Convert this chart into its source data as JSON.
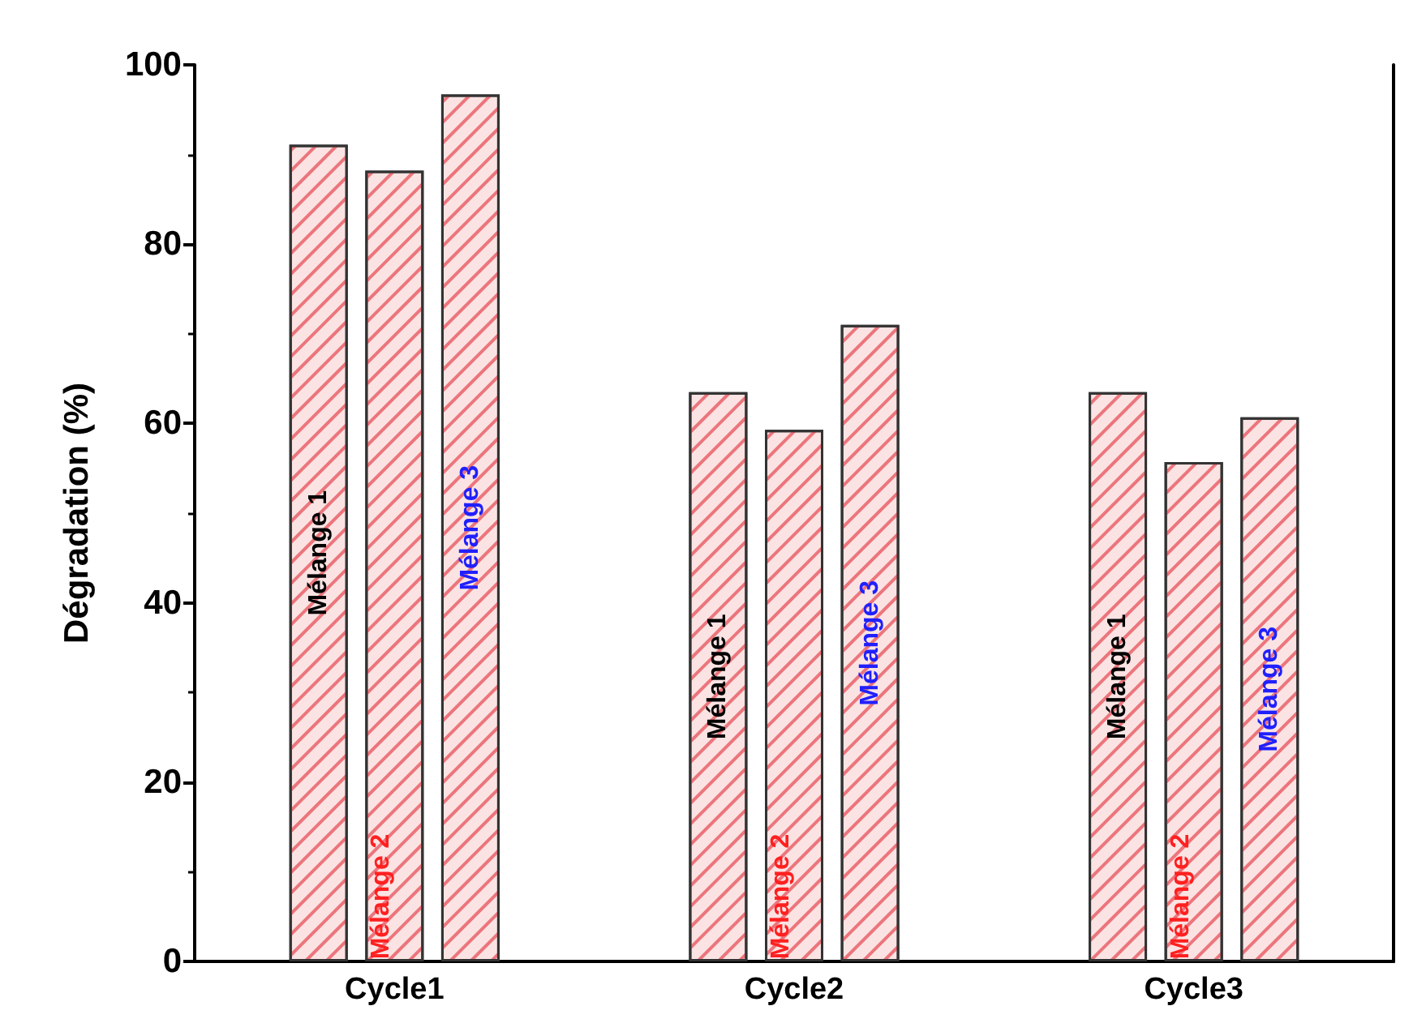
{
  "chart_data": {
    "type": "bar",
    "ylabel": "Dégradation (%)",
    "categories": [
      "Cycle1",
      "Cycle2",
      "Cycle3"
    ],
    "series": [
      {
        "name": "Mélange 1",
        "color": "#fbe3e3",
        "values": [
          91.1,
          63.5,
          63.5
        ]
      },
      {
        "name": "Mélange 2",
        "color": "#fbe3e3",
        "values": [
          88.2,
          59.3,
          55.7
        ]
      },
      {
        "name": "Mélange 3",
        "color": "#fbe3e3",
        "values": [
          96.7,
          71,
          60.7
        ]
      }
    ],
    "ylim": [
      0,
      100
    ],
    "yticks": [
      0,
      20,
      40,
      60,
      80,
      100
    ],
    "grid": false,
    "legend": false
  }
}
